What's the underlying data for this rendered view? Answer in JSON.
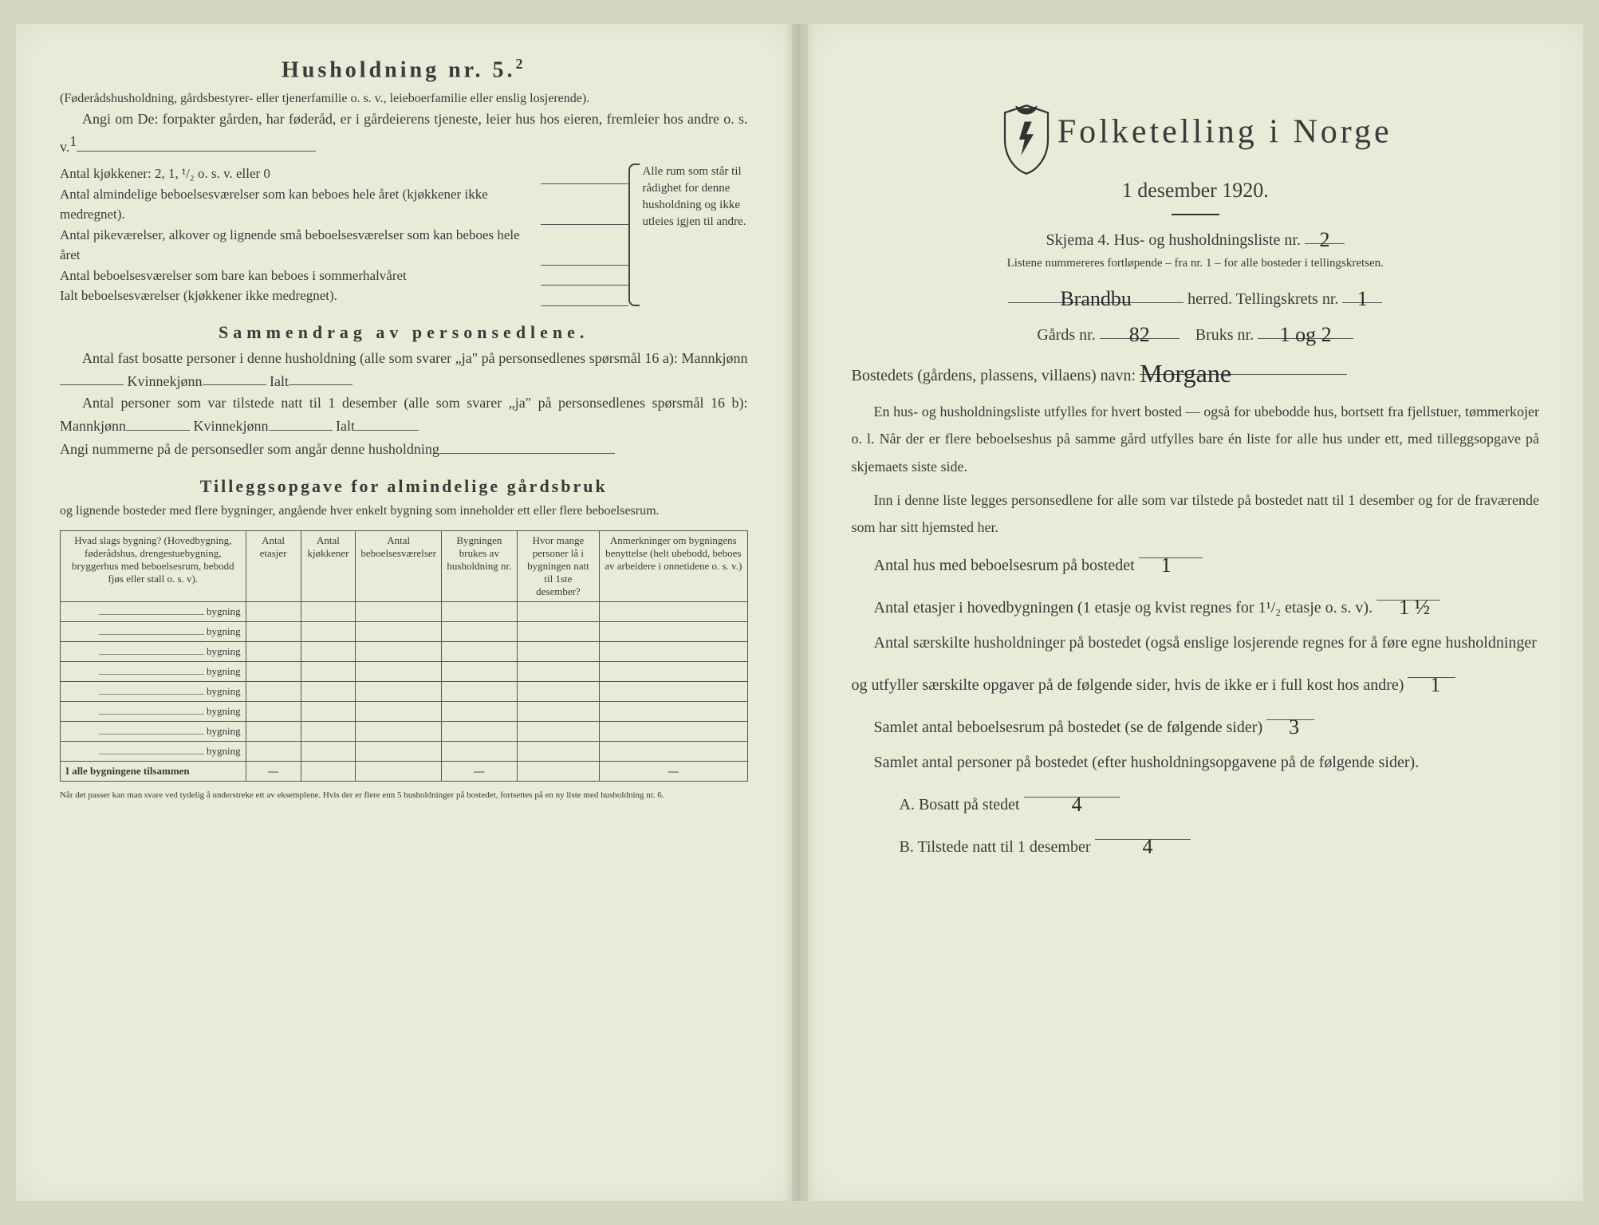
{
  "colors": {
    "paper": "#e8ebd8",
    "ink": "#3a3a3a",
    "handwriting": "#2a2a2a",
    "border": "#555555"
  },
  "left": {
    "heading": "Husholdning nr. 5.",
    "heading_super": "2",
    "sub1": "(Føderådshusholdning, gårdsbestyrer- eller tjenerfamilie o. s. v., leieboerfamilie eller enslig losjerende).",
    "sub2": "Angi om De: forpakter gården, har føderåd, er i gårdeierens tjeneste, leier hus hos eieren, fremleier hos andre o. s. v.",
    "sub2_sup": "1",
    "items": [
      "Antal kjøkkener: 2, 1, ¹/₂ o. s. v. eller 0",
      "Antal almindelige beboelsesværelser som kan beboes hele året (kjøkkener ikke medregnet).",
      "Antal pikeværelser, alkover og lignende små beboelsesværelser som kan beboes hele året",
      "Antal beboelsesværelser som bare kan beboes i sommerhalvåret",
      "Ialt beboelsesværelser (kjøkkener ikke medregnet)."
    ],
    "brace_text": "Alle rum som står til rådighet for denne husholdning og ikke utleies igjen til andre.",
    "summary_title": "Sammendrag av personsedlene.",
    "summary_p1": "Antal fast bosatte personer i denne husholdning (alle som svarer „ja\" på personsedlenes spørsmål 16 a): Mannkjønn",
    "summary_p1b": "Kvinnekjønn",
    "summary_p1c": "Ialt",
    "summary_p2": "Antal personer som var tilstede natt til 1 desember (alle som svarer „ja\" på personsedlenes spørsmål 16 b): Mannkjønn",
    "summary_p3": "Angi nummerne på de personsedler som angår denne husholdning",
    "tillegg_title": "Tilleggsopgave for almindelige gårdsbruk",
    "tillegg_sub": "og lignende bosteder med flere bygninger, angående hver enkelt bygning som inneholder ett eller flere beboelsesrum.",
    "table_headers": [
      "Hvad slags bygning?\n(Hovedbygning, føderådshus, drengestuebygning, bryggerhus med beboelsesrum, bebodd fjøs eller stall o. s. v).",
      "Antal etasjer",
      "Antal kjøkkener",
      "Antal beboelsesværelser",
      "Bygningen brukes av husholdning nr.",
      "Hvor mange personer lå i bygningen natt til 1ste desember?",
      "Anmerkninger om bygningens benyttelse (helt ubebodd, beboes av arbeidere i onnetidene o. s. v.)"
    ],
    "bygning_label": "bygning",
    "row_count": 8,
    "totals_label": "I alle bygningene tilsammen",
    "dash": "—",
    "footnote": "Når det passer kan man svare ved tydelig å understreke ett av eksemplene.\nHvis der er flere enn 5 husholdninger på bostedet, fortsettes på en ny liste med husholdning nr. 6."
  },
  "right": {
    "title": "Folketelling i Norge",
    "date": "1 desember 1920.",
    "skjema_pre": "Skjema 4.  Hus- og husholdningsliste nr.",
    "skjema_nr": "2",
    "note": "Listene nummereres fortløpende – fra nr. 1 – for alle bosteder i tellingskretsen.",
    "herred_value": "Brandbu",
    "herred_label": "herred.   Tellingskrets nr.",
    "krets_nr": "1",
    "gards_label": "Gårds nr.",
    "gards_nr": "82",
    "bruks_label": "Bruks nr.",
    "bruks_nr": "1 og 2",
    "bosted_label": "Bostedets (gårdens, plassens, villaens) navn:",
    "bosted_value": "Morgane",
    "p1": "En hus- og husholdningsliste utfylles for hvert bosted — også for ubebodde hus, bortsett fra fjellstuer, tømmerkojer o. l.  Når der er flere beboelseshus på samme gård utfylles bare én liste for alle hus under ett, med tilleggsopgave på skjemaets siste side.",
    "p2": "Inn i denne liste legges personsedlene for alle som var tilstede på bostedet natt til 1 desember og for de fraværende som har sitt hjemsted her.",
    "l1_label": "Antal hus med beboelsesrum på bostedet",
    "l1_val": "1",
    "l2_label_a": "Antal etasjer i hovedbygningen (1 etasje og kvist regnes for 1¹/₂ etasje o. s. v).",
    "l2_val": "1 ½",
    "l3_label": "Antal særskilte husholdninger på bostedet (også enslige losjerende regnes for å føre egne husholdninger og utfyller særskilte opgaver på de følgende sider, hvis de ikke er i full kost hos andre)",
    "l3_val": "1",
    "l4_label": "Samlet antal beboelsesrum på bostedet (se de følgende sider)",
    "l4_val": "3",
    "l5_label": "Samlet antal personer på bostedet (efter husholdningsopgavene på de følgende sider).",
    "lA_label": "A.  Bosatt på stedet",
    "lA_val": "4",
    "lB_label": "B.  Tilstede natt til 1 desember",
    "lB_val": "4"
  }
}
